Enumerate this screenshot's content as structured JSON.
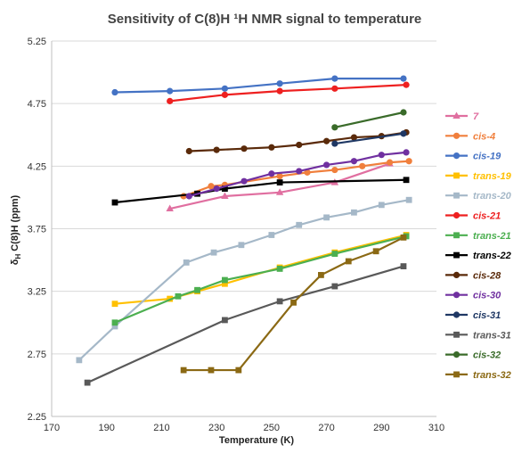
{
  "chart_data": {
    "type": "line",
    "title": "Sensitivity of C(8)H ¹H NMR signal to temperature",
    "xlabel": "Temperature (K)",
    "ylabel": "δH C(8)H (ppm)",
    "xlim": [
      170,
      310
    ],
    "ylim": [
      2.25,
      5.25
    ],
    "xticks": [
      "170",
      "190",
      "210",
      "230",
      "250",
      "270",
      "290",
      "310"
    ],
    "yticks": [
      "2.25",
      "2.75",
      "3.25",
      "3.75",
      "4.25",
      "4.75",
      "5.25"
    ],
    "grid": "horizontal",
    "legend_position": "right",
    "series": [
      {
        "name": "7",
        "color": "#e06fa0",
        "marker": "triangle",
        "x": [
          213,
          233,
          253,
          273,
          293
        ],
        "y": [
          3.91,
          4.01,
          4.04,
          4.12,
          4.27
        ]
      },
      {
        "name": "cis-4",
        "color": "#f07f3c",
        "marker": "circle",
        "x": [
          218,
          228,
          233,
          253,
          263,
          273,
          283,
          293,
          300
        ],
        "y": [
          4.01,
          4.09,
          4.1,
          4.17,
          4.2,
          4.22,
          4.25,
          4.28,
          4.29
        ]
      },
      {
        "name": "cis-19",
        "color": "#4472c4",
        "marker": "circle",
        "x": [
          193,
          213,
          233,
          253,
          273,
          298
        ],
        "y": [
          4.84,
          4.85,
          4.87,
          4.91,
          4.95,
          4.95
        ]
      },
      {
        "name": "trans-19",
        "color": "#ffc000",
        "marker": "square",
        "x": [
          193,
          213,
          223,
          233,
          253,
          273,
          299
        ],
        "y": [
          3.15,
          3.19,
          3.25,
          3.31,
          3.44,
          3.56,
          3.7
        ]
      },
      {
        "name": "trans-20",
        "color": "#a5b8c8",
        "marker": "square",
        "x": [
          180,
          193,
          219,
          229,
          239,
          250,
          260,
          270,
          280,
          290,
          300
        ],
        "y": [
          2.7,
          2.97,
          3.48,
          3.56,
          3.62,
          3.7,
          3.78,
          3.84,
          3.88,
          3.94,
          3.98
        ]
      },
      {
        "name": "cis-21",
        "color": "#ee2020",
        "marker": "circle",
        "x": [
          213,
          233,
          253,
          273,
          299
        ],
        "y": [
          4.77,
          4.82,
          4.85,
          4.87,
          4.9
        ]
      },
      {
        "name": "trans-21",
        "color": "#4caf50",
        "marker": "square",
        "x": [
          193,
          216,
          223,
          233,
          253,
          273,
          299
        ],
        "y": [
          3.0,
          3.21,
          3.26,
          3.34,
          3.43,
          3.55,
          3.69
        ]
      },
      {
        "name": "trans-22",
        "color": "#000000",
        "marker": "square",
        "x": [
          193,
          223,
          233,
          253,
          299
        ],
        "y": [
          3.96,
          4.03,
          4.07,
          4.12,
          4.14
        ]
      },
      {
        "name": "cis-28",
        "color": "#5a2a0a",
        "marker": "circle",
        "x": [
          220,
          230,
          240,
          250,
          260,
          270,
          280,
          290,
          299
        ],
        "y": [
          4.37,
          4.38,
          4.39,
          4.4,
          4.42,
          4.45,
          4.48,
          4.49,
          4.52
        ]
      },
      {
        "name": "cis-30",
        "color": "#7030a0",
        "marker": "circle",
        "x": [
          220,
          230,
          240,
          250,
          260,
          270,
          280,
          290,
          299
        ],
        "y": [
          4.01,
          4.07,
          4.13,
          4.19,
          4.21,
          4.26,
          4.29,
          4.34,
          4.36
        ]
      },
      {
        "name": "cis-31",
        "color": "#1f3864",
        "marker": "circle",
        "x": [
          273,
          298
        ],
        "y": [
          4.43,
          4.51
        ]
      },
      {
        "name": "trans-31",
        "color": "#595959",
        "marker": "square",
        "x": [
          183,
          233,
          253,
          273,
          298
        ],
        "y": [
          2.52,
          3.02,
          3.17,
          3.29,
          3.45
        ]
      },
      {
        "name": "cis-32",
        "color": "#3a6b2a",
        "marker": "circle",
        "x": [
          273,
          298
        ],
        "y": [
          4.56,
          4.68
        ]
      },
      {
        "name": "trans-32",
        "color": "#8b6914",
        "marker": "square",
        "x": [
          218,
          228,
          238,
          258,
          268,
          278,
          288,
          298
        ],
        "y": [
          2.62,
          2.62,
          2.62,
          3.16,
          3.38,
          3.49,
          3.57,
          3.68
        ]
      }
    ]
  }
}
